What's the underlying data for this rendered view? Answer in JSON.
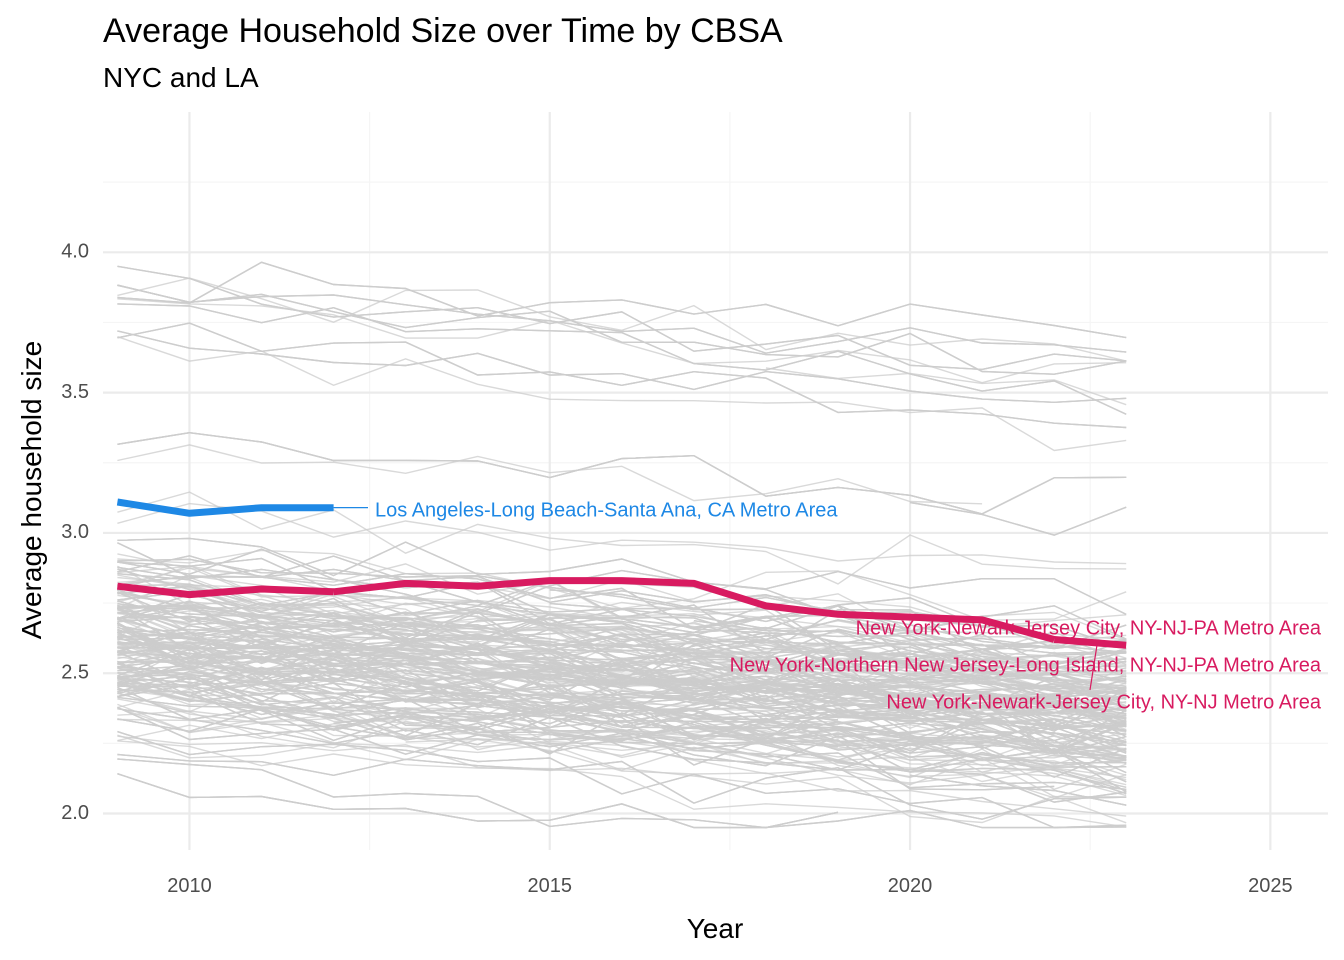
{
  "chart_data": {
    "type": "line",
    "title": "Average Household Size over Time by CBSA",
    "subtitle": "NYC and LA",
    "xlabel": "Year",
    "ylabel": "Average household size",
    "xlim": [
      2008.8,
      2025.8
    ],
    "ylim": [
      1.87,
      4.5
    ],
    "x_ticks": [
      2010,
      2015,
      2020,
      2025
    ],
    "y_ticks": [
      2.0,
      2.5,
      3.0,
      3.5,
      4.0
    ],
    "grid": true,
    "legend": "none",
    "colors": {
      "background_lines": "#cccccc",
      "la": "#1e88e5",
      "nyc": "#d81b60",
      "grid_major": "#ebebeb",
      "grid_minor": "#f5f5f5"
    },
    "series": [
      {
        "name": "Los Angeles-Long Beach-Santa Ana, CA Metro Area",
        "color": "#1e88e5",
        "x": [
          2009,
          2010,
          2011,
          2012
        ],
        "y": [
          3.11,
          3.07,
          3.09,
          3.09
        ]
      },
      {
        "name": "New York-Northern New Jersey-Long Island, NY-NJ-PA Metro Area",
        "color": "#d81b60",
        "x": [
          2009,
          2010,
          2011,
          2012
        ],
        "y": [
          2.81,
          2.78,
          2.8,
          2.79
        ]
      },
      {
        "name": "New York-Newark-Jersey City, NY-NJ-PA Metro Area",
        "color": "#d81b60",
        "x": [
          2012,
          2013,
          2014,
          2015,
          2016,
          2017,
          2018,
          2019,
          2020,
          2021,
          2022
        ],
        "y": [
          2.79,
          2.82,
          2.81,
          2.83,
          2.83,
          2.82,
          2.74,
          2.71,
          2.7,
          2.69,
          2.62
        ]
      },
      {
        "name": "New York-Newark-Jersey City, NY-NJ Metro Area",
        "color": "#d81b60",
        "x": [
          2022,
          2023
        ],
        "y": [
          2.62,
          2.6
        ]
      }
    ],
    "labels": [
      {
        "text": "Los Angeles-Long Beach-Santa Ana, CA Metro Area",
        "color": "#1e88e5",
        "x": 2012.1,
        "y": 3.09
      },
      {
        "text": "New York-Newark-Jersey City, NY-NJ-PA Metro Area",
        "color": "#d81b60",
        "x": 2021.0,
        "y": 2.68
      },
      {
        "text": "New York-Northern New Jersey-Long Island, NY-NJ-PA Metro Area",
        "color": "#d81b60",
        "x": 2021.6,
        "y": 2.55
      },
      {
        "text": "New York-Newark-Jersey City, NY-NJ Metro Area",
        "color": "#d81b60",
        "x": 2022.6,
        "y": 2.52
      }
    ],
    "background_series_count": 420
  }
}
